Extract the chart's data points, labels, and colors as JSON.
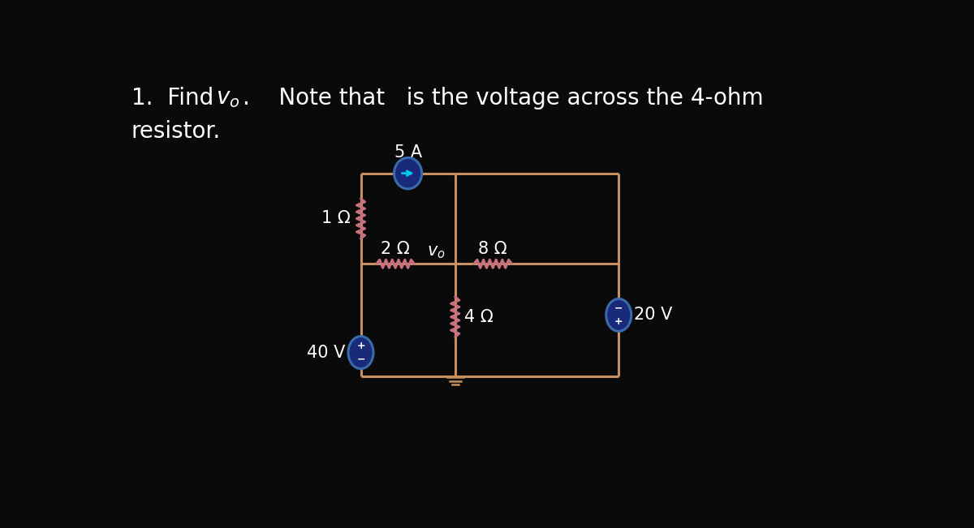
{
  "bg_color": "#0a0a0a",
  "wire_color": "#c89060",
  "resistor_color": "#c87080",
  "source_fill": "#1a2a7a",
  "source_edge": "#3a6aaa",
  "text_color": "#ffffff",
  "arrow_color": "#00ccee",
  "title_line1_plain": "1.  Find ",
  "title_vo_math": "$v_o$",
  "title_line1_rest": ".    Note that   is the voltage across the 4-ohm",
  "title_line2": "resistor.",
  "label_5A": "5 A",
  "label_2ohm": "2 Ω",
  "label_1ohm": "1 Ω",
  "label_4ohm": "4 Ω",
  "label_8ohm": "8 Ω",
  "label_vo": "$v_o$",
  "label_40V": "40 V",
  "label_20V": "20 V",
  "title_fontsize": 20,
  "label_fontsize": 15
}
